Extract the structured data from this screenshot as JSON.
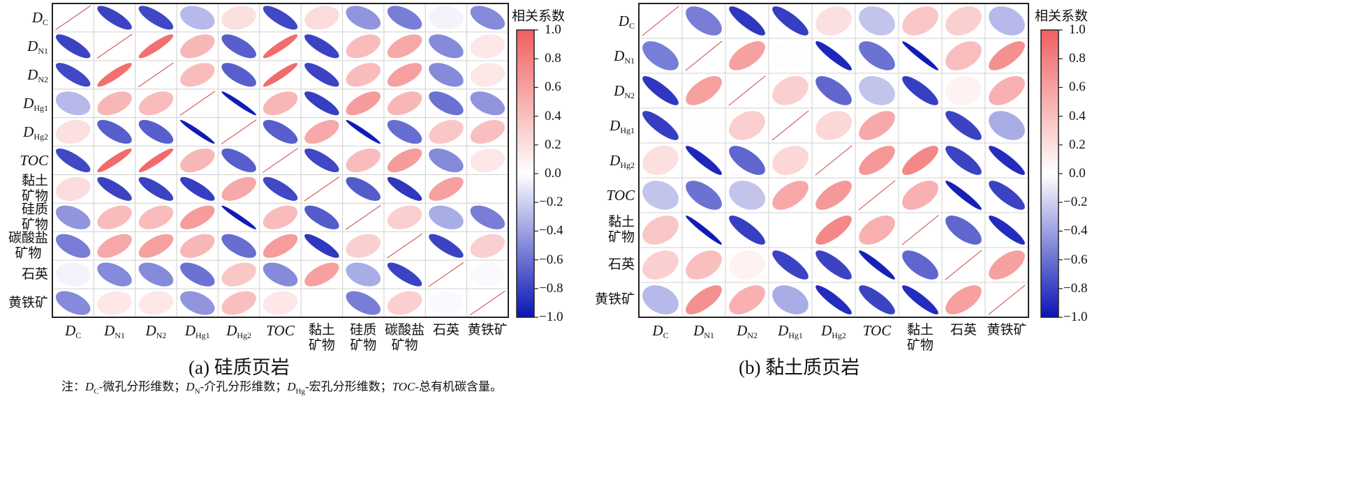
{
  "chart_data": [
    {
      "type": "heatmap",
      "subtype": "correlation-ellipse",
      "caption": "(a) 硅质页岩",
      "colorbar_title": "相关系数",
      "colorbar_ticks": [
        "1.0",
        "0.8",
        "0.6",
        "0.4",
        "0.2",
        "0.0",
        "−0.2",
        "−0.4",
        "−0.6",
        "−0.8",
        "−1.0"
      ],
      "vlim": [
        -1,
        1
      ],
      "colors": {
        "negative": "#0a14b4",
        "zero": "#ffffff",
        "positive": "#f06060"
      },
      "labels": [
        {
          "main": "D",
          "sub": "C"
        },
        {
          "main": "D",
          "sub": "N1"
        },
        {
          "main": "D",
          "sub": "N2"
        },
        {
          "main": "D",
          "sub": "Hg1"
        },
        {
          "main": "D",
          "sub": "Hg2"
        },
        {
          "main": "TOC",
          "sub": ""
        },
        {
          "text": "黏土\n矿物"
        },
        {
          "text": "硅质\n矿物"
        },
        {
          "text": "碳酸盐\n矿物"
        },
        {
          "text": "石英"
        },
        {
          "text": "黄铁矿"
        }
      ],
      "matrix": [
        [
          1,
          -0.8,
          -0.78,
          -0.3,
          0.2,
          -0.78,
          0.22,
          -0.45,
          -0.55,
          -0.05,
          -0.5
        ],
        [
          -0.8,
          1,
          0.9,
          0.45,
          -0.68,
          0.92,
          -0.8,
          0.42,
          0.55,
          -0.5,
          0.15
        ],
        [
          -0.78,
          0.9,
          1,
          0.42,
          -0.68,
          0.93,
          -0.8,
          0.42,
          0.6,
          -0.5,
          0.15
        ],
        [
          -0.3,
          0.45,
          0.42,
          1,
          -0.97,
          0.45,
          -0.82,
          0.62,
          0.45,
          -0.6,
          -0.45
        ],
        [
          0.2,
          -0.68,
          -0.68,
          -0.97,
          1,
          -0.68,
          0.55,
          -0.97,
          -0.62,
          0.35,
          0.4
        ],
        [
          -0.78,
          0.92,
          0.93,
          0.45,
          -0.68,
          1,
          -0.78,
          0.42,
          0.62,
          -0.5,
          0.15
        ],
        [
          0.22,
          -0.8,
          -0.8,
          -0.82,
          0.55,
          -0.78,
          1,
          -0.7,
          -0.85,
          0.6,
          0
        ],
        [
          -0.45,
          0.42,
          0.42,
          0.62,
          -0.97,
          0.42,
          -0.7,
          1,
          0.3,
          -0.35,
          -0.55
        ],
        [
          -0.55,
          0.55,
          0.6,
          0.45,
          -0.62,
          0.62,
          -0.85,
          0.3,
          1,
          -0.8,
          0.3
        ],
        [
          -0.05,
          -0.5,
          -0.5,
          -0.6,
          0.35,
          -0.5,
          0.6,
          -0.35,
          -0.8,
          1,
          -0.02
        ],
        [
          -0.5,
          0.15,
          0.15,
          -0.45,
          0.4,
          0.15,
          0,
          -0.55,
          0.3,
          -0.02,
          1
        ]
      ]
    },
    {
      "type": "heatmap",
      "subtype": "correlation-ellipse",
      "caption": "(b) 黏土质页岩",
      "colorbar_title": "相关系数",
      "colorbar_ticks": [
        "1.0",
        "0.8",
        "0.6",
        "0.4",
        "0.2",
        "0.0",
        "−0.2",
        "−0.4",
        "−0.6",
        "−0.8",
        "−1.0"
      ],
      "vlim": [
        -1,
        1
      ],
      "colors": {
        "negative": "#0a14b4",
        "zero": "#ffffff",
        "positive": "#f06060"
      },
      "labels": [
        {
          "main": "D",
          "sub": "C"
        },
        {
          "main": "D",
          "sub": "N1"
        },
        {
          "main": "D",
          "sub": "N2"
        },
        {
          "main": "D",
          "sub": "Hg1"
        },
        {
          "main": "D",
          "sub": "Hg2"
        },
        {
          "main": "TOC",
          "sub": ""
        },
        {
          "text": "黏土\n矿物"
        },
        {
          "text": "石英"
        },
        {
          "text": "黄铁矿"
        }
      ],
      "matrix": [
        [
          1,
          -0.55,
          -0.85,
          -0.82,
          0.2,
          -0.25,
          0.35,
          0.3,
          -0.3
        ],
        [
          -0.55,
          1,
          0.6,
          0.02,
          -0.92,
          -0.6,
          -0.97,
          0.4,
          0.7
        ],
        [
          -0.85,
          0.6,
          1,
          0.3,
          -0.65,
          -0.25,
          -0.82,
          0.08,
          0.5
        ],
        [
          -0.82,
          0.02,
          0.3,
          1,
          0.25,
          0.55,
          0,
          -0.8,
          -0.35
        ],
        [
          0.2,
          -0.92,
          -0.65,
          0.25,
          1,
          0.65,
          0.75,
          -0.8,
          -0.9
        ],
        [
          -0.25,
          -0.6,
          -0.25,
          0.55,
          0.65,
          1,
          0.5,
          -0.95,
          -0.8
        ],
        [
          0.35,
          -0.97,
          -0.82,
          0,
          0.75,
          0.5,
          1,
          -0.65,
          -0.9
        ],
        [
          0.3,
          0.4,
          0.08,
          -0.8,
          -0.8,
          -0.95,
          -0.65,
          1,
          0.6
        ],
        [
          -0.3,
          0.7,
          0.5,
          -0.35,
          -0.9,
          -0.8,
          -0.9,
          0.6,
          1
        ]
      ]
    }
  ],
  "note": {
    "prefix": "注：",
    "items": [
      {
        "main": "D",
        "sub": "C",
        "text": "-微孔分形维数；"
      },
      {
        "main": "D",
        "sub": "N",
        "text": "-介孔分形维数；"
      },
      {
        "main": "D",
        "sub": "Hg",
        "text": "-宏孔分形维数；"
      },
      {
        "main": "TOC",
        "sub": "",
        "text": "-总有机碳含量。"
      }
    ]
  }
}
